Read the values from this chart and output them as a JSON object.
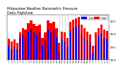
{
  "title": "Milwaukee Weather Barometric Pressure\nDaily High/Low",
  "title_fontsize": 3.5,
  "ylim": [
    29.0,
    30.75
  ],
  "background_color": "#ffffff",
  "legend_high_color": "#ff0000",
  "legend_low_color": "#0000ff",
  "legend_high_label": "High",
  "legend_low_label": "Low",
  "dotted_indices": [
    18,
    19,
    20,
    21
  ],
  "high_values": [
    29.82,
    29.72,
    29.78,
    29.65,
    30.05,
    30.22,
    30.18,
    30.42,
    30.52,
    30.38,
    30.31,
    30.35,
    29.85,
    30.05,
    30.52,
    30.42,
    30.48,
    30.22,
    29.65,
    30.1,
    30.05,
    29.85,
    30.48,
    30.55,
    30.62,
    30.65,
    30.35,
    30.22,
    30.1,
    29.98,
    29.55,
    30.05,
    30.22,
    30.35,
    30.18,
    30.12
  ],
  "low_values": [
    29.55,
    29.42,
    29.48,
    29.42,
    29.82,
    29.95,
    29.88,
    30.08,
    30.18,
    30.05,
    29.98,
    30.05,
    29.55,
    29.75,
    30.18,
    30.05,
    30.15,
    29.88,
    29.32,
    29.78,
    29.72,
    29.52,
    30.12,
    30.22,
    30.28,
    30.35,
    30.02,
    29.88,
    29.75,
    29.68,
    29.25,
    29.55,
    29.92,
    30.02,
    29.85,
    29.82
  ],
  "x_labels": [
    "1",
    "2",
    "3",
    "4",
    "5",
    "6",
    "7",
    "8",
    "9",
    "10",
    "11",
    "12",
    "13",
    "14",
    "15",
    "16",
    "17",
    "18",
    "19",
    "20",
    "21",
    "22",
    "23",
    "24",
    "25",
    "26",
    "27",
    "28",
    "29",
    "30",
    "31",
    "1",
    "2",
    "3",
    "4",
    "5"
  ],
  "ytick_labels": [
    "29.0",
    "29.5",
    "30.0",
    "30.5"
  ],
  "ytick_values": [
    29.0,
    29.5,
    30.0,
    30.5
  ],
  "high_color": "#ff0000",
  "low_color": "#0000ff"
}
